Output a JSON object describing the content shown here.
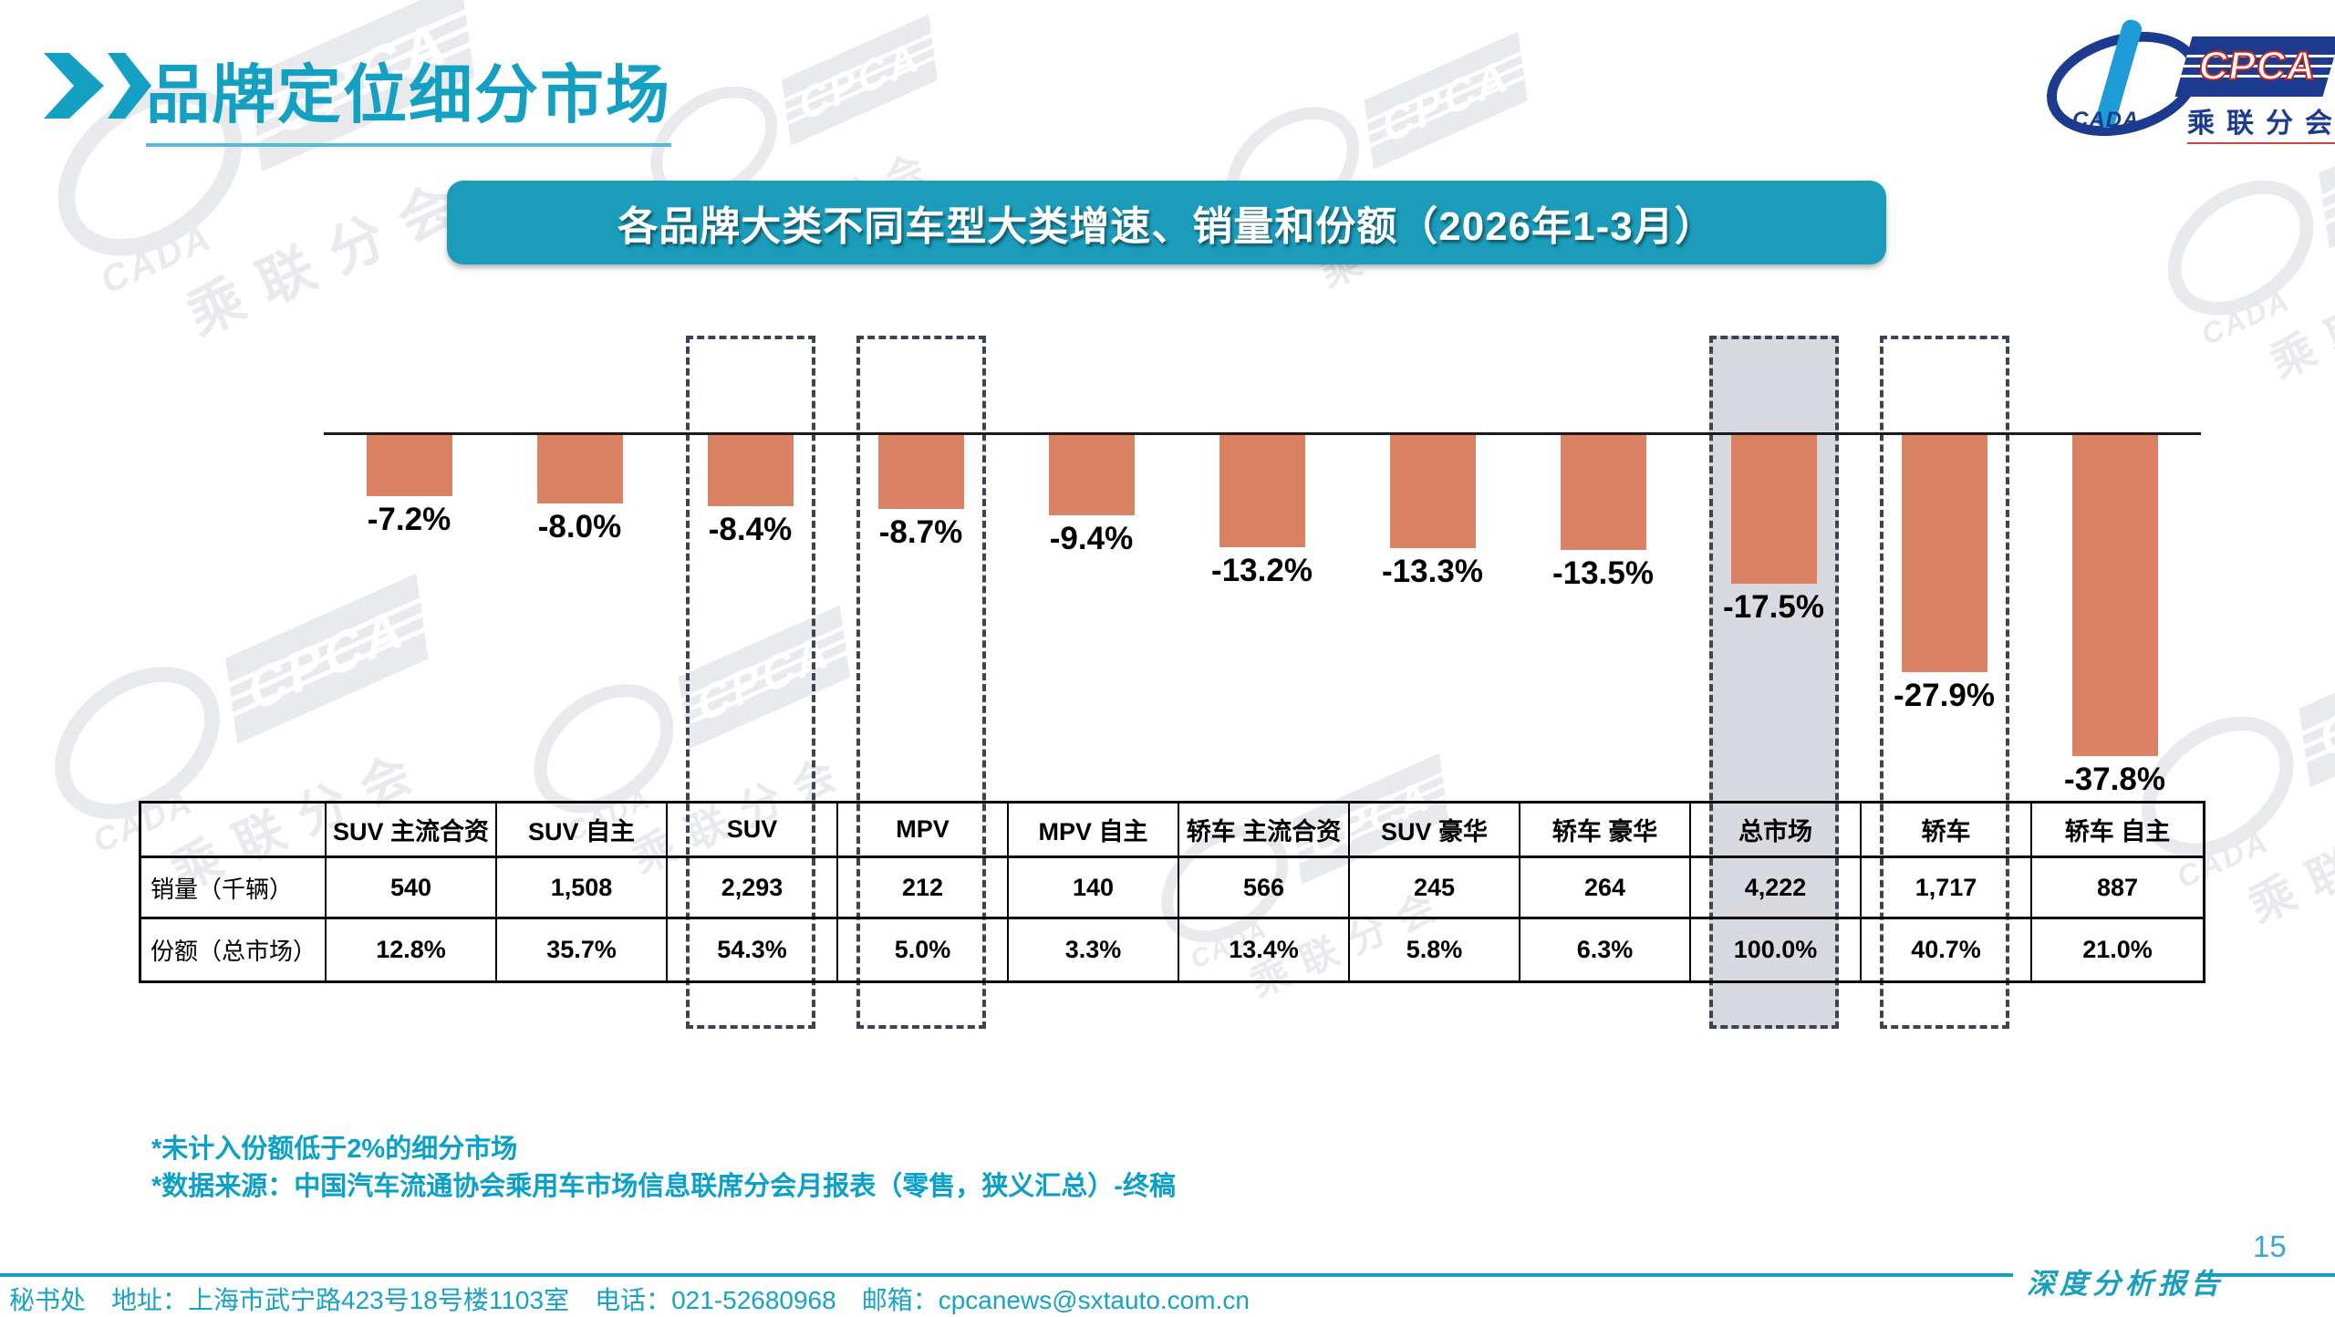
{
  "accent_color": "#14A0C2",
  "header": {
    "title": "品牌定位细分市场"
  },
  "logo": {
    "cpca_text": "CPCA",
    "cada_text": "CADA",
    "sub_text": "乘联分会"
  },
  "banner": {
    "text": "各品牌大类不同车型大类增速、销量和份额（2026年1-3月）"
  },
  "chart_data": {
    "type": "bar",
    "title": "各品牌大类不同车型大类增速、销量和份额（2026年1-3月）",
    "categories": [
      "SUV 主流合资",
      "SUV 自主",
      "SUV",
      "MPV",
      "MPV 自主",
      "轿车 主流合资",
      "SUV 豪华",
      "轿车 豪华",
      "总市场",
      "轿车",
      "轿车 自主"
    ],
    "series": [
      {
        "name": "增速",
        "values": [
          -7.2,
          -8.0,
          -8.4,
          -8.7,
          -9.4,
          -13.2,
          -13.3,
          -13.5,
          -17.5,
          -27.9,
          -37.8
        ],
        "labels": [
          "-7.2%",
          "-8.0%",
          "-8.4%",
          "-8.7%",
          "-9.4%",
          "-13.2%",
          "-13.3%",
          "-13.5%",
          "-17.5%",
          "-27.9%",
          "-37.8%"
        ]
      },
      {
        "name": "销量（千辆）",
        "values": [
          540,
          1508,
          2293,
          212,
          140,
          566,
          245,
          264,
          4222,
          1717,
          887
        ],
        "labels": [
          "540",
          "1,508",
          "2,293",
          "212",
          "140",
          "566",
          "245",
          "264",
          "4,222",
          "1,717",
          "887"
        ]
      },
      {
        "name": "份额（总市场）",
        "values": [
          12.8,
          35.7,
          54.3,
          5.0,
          3.3,
          13.4,
          5.8,
          6.3,
          100.0,
          40.7,
          21.0
        ],
        "labels": [
          "12.8%",
          "35.7%",
          "54.3%",
          "5.0%",
          "3.3%",
          "13.4%",
          "5.8%",
          "6.3%",
          "100.0%",
          "40.7%",
          "21.0%"
        ]
      }
    ],
    "ylim": [
      -40,
      0
    ],
    "grid": false,
    "legend": "none",
    "bar_color": "#DB8265",
    "highlight_fill_color": "#D9D9E0",
    "dashed_border_color": "#3E4354",
    "highlight_dashed_categories": [
      "SUV",
      "MPV",
      "轿车"
    ],
    "highlight_filled_categories": [
      "总市场"
    ]
  },
  "table": {
    "columns": [
      "SUV 主流合资",
      "SUV 自主",
      "SUV",
      "MPV",
      "MPV 自主",
      "轿车 主流合资",
      "SUV 豪华",
      "轿车 豪华",
      "总市场",
      "轿车",
      "轿车 自主"
    ],
    "row_labels": [
      "销量（千辆）",
      "份额（总市场）"
    ],
    "rows": [
      [
        "540",
        "1,508",
        "2,293",
        "212",
        "140",
        "566",
        "245",
        "264",
        "4,222",
        "1,717",
        "887"
      ],
      [
        "12.8%",
        "35.7%",
        "54.3%",
        "5.0%",
        "3.3%",
        "13.4%",
        "5.8%",
        "6.3%",
        "100.0%",
        "40.7%",
        "21.0%"
      ]
    ]
  },
  "footnotes": [
    "*未计入份额低于2%的细分市场",
    "*数据来源：中国汽车流通协会乘用车市场信息联席分会月报表（零售，狭义汇总）-终稿"
  ],
  "footer": {
    "address": "秘书处　地址：上海市武宁路423号18号楼1103室　电话：021-52680968　邮箱：cpcanews@sxtauto.com.cn",
    "report_label": "深度分析报告",
    "page_number": "15"
  }
}
